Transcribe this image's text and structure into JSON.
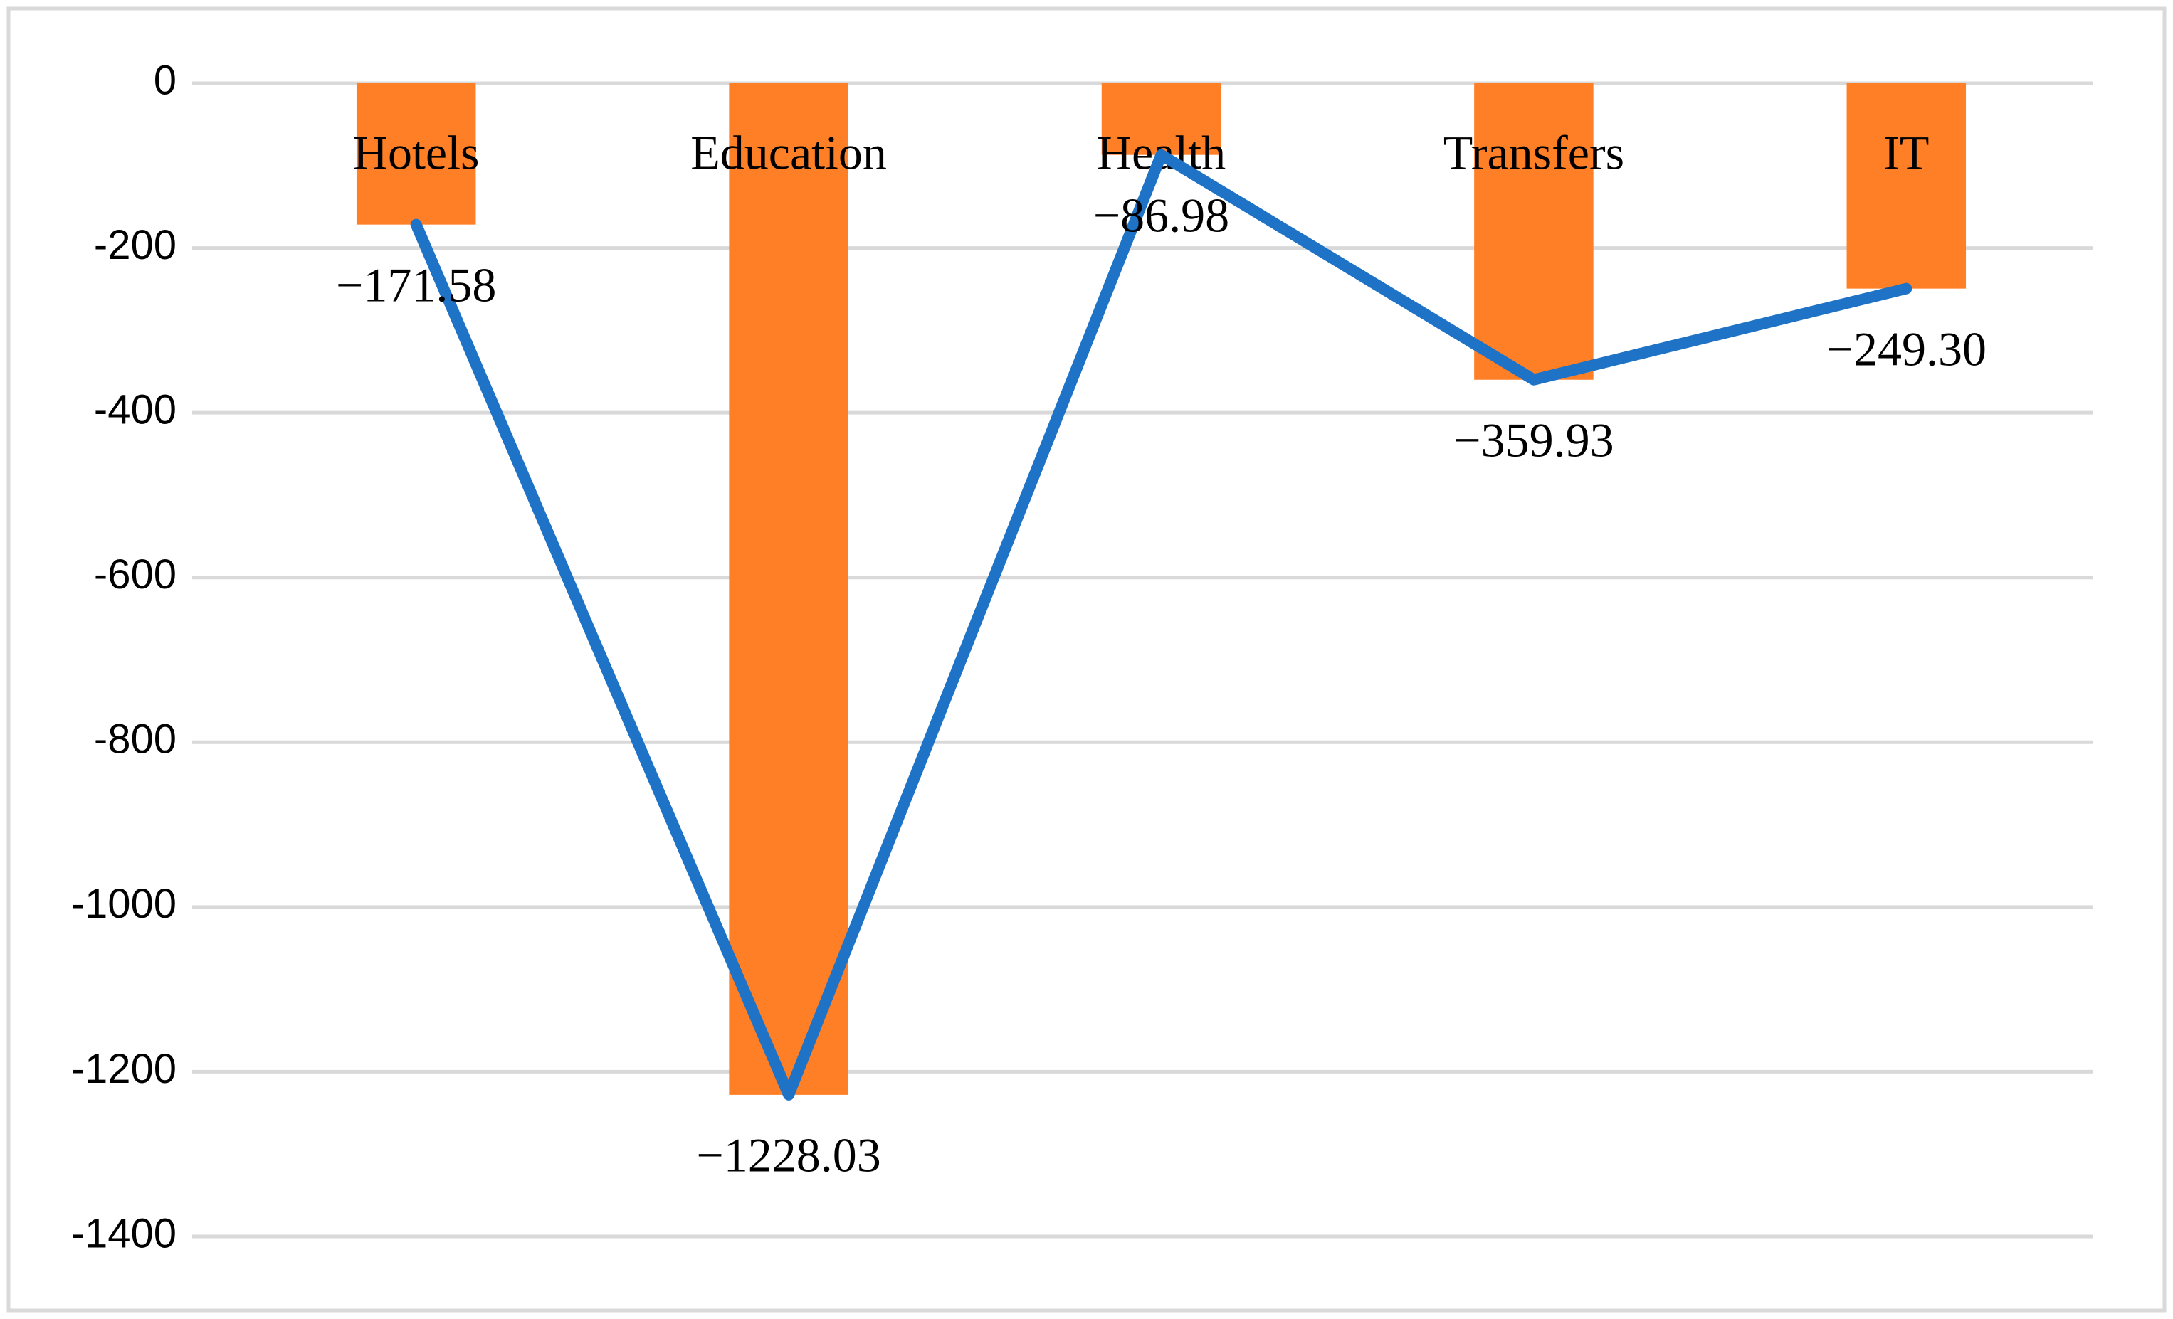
{
  "chart_data": {
    "type": "bar",
    "categories": [
      "Hotels",
      "Education",
      "Health",
      "Transfers",
      "IT"
    ],
    "values": [
      -171.58,
      -1228.03,
      -86.98,
      -359.93,
      -249.3
    ],
    "value_labels": [
      "−171.58",
      "−1228.03",
      "−86.98",
      "−359.93",
      "−249.30"
    ],
    "color": "#ff7f27",
    "line_overlay": true,
    "line_color": "#1f73c7",
    "ylim": [
      -1400,
      0
    ],
    "yticks": [
      0,
      -200,
      -400,
      -600,
      -800,
      -1000,
      -1200,
      -1400
    ],
    "grid": true
  }
}
